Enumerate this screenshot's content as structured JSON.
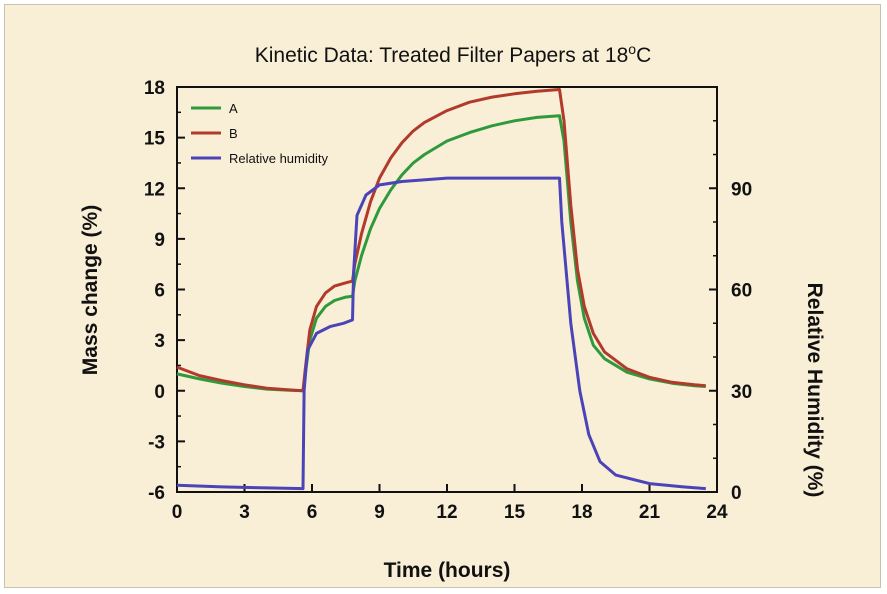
{
  "chart_data": {
    "type": "line",
    "title": "Kinetic Data: Treated Filter Papers at 18",
    "title_suffix": "°C",
    "xlabel": "Time (hours)",
    "ylabel": "Mass change (%)",
    "y2label": "Relative Humidity (%)",
    "xlim": [
      0,
      24
    ],
    "ylim": [
      -6,
      18
    ],
    "y2lim": [
      0,
      120
    ],
    "xticks": [
      0,
      3,
      6,
      9,
      12,
      15,
      18,
      21,
      24
    ],
    "yticks": [
      -6,
      -3,
      0,
      3,
      6,
      9,
      12,
      15,
      18
    ],
    "y2ticks": [
      0,
      30,
      60,
      90
    ],
    "grid": false,
    "legend_position": "top-left",
    "series": [
      {
        "name": "A",
        "axis": "left",
        "color": "#2e9a3c",
        "points": [
          [
            0,
            1.0
          ],
          [
            1,
            0.7
          ],
          [
            2,
            0.45
          ],
          [
            3,
            0.25
          ],
          [
            4,
            0.1
          ],
          [
            5,
            0.03
          ],
          [
            5.6,
            0.0
          ],
          [
            5.7,
            1.0
          ],
          [
            5.9,
            3.0
          ],
          [
            6.2,
            4.3
          ],
          [
            6.6,
            5.0
          ],
          [
            7.0,
            5.35
          ],
          [
            7.5,
            5.55
          ],
          [
            7.8,
            5.6
          ],
          [
            7.9,
            6.5
          ],
          [
            8.2,
            8.0
          ],
          [
            8.6,
            9.6
          ],
          [
            9,
            10.8
          ],
          [
            9.5,
            11.9
          ],
          [
            10,
            12.8
          ],
          [
            10.5,
            13.5
          ],
          [
            11,
            14.0
          ],
          [
            12,
            14.8
          ],
          [
            13,
            15.3
          ],
          [
            14,
            15.7
          ],
          [
            15,
            16.0
          ],
          [
            16,
            16.2
          ],
          [
            17,
            16.3
          ],
          [
            17.2,
            14.8
          ],
          [
            17.5,
            10.0
          ],
          [
            17.8,
            6.5
          ],
          [
            18.1,
            4.3
          ],
          [
            18.5,
            2.7
          ],
          [
            19,
            1.9
          ],
          [
            20,
            1.1
          ],
          [
            21,
            0.7
          ],
          [
            22,
            0.45
          ],
          [
            23,
            0.3
          ],
          [
            23.5,
            0.25
          ]
        ]
      },
      {
        "name": "B",
        "axis": "left",
        "color": "#b23a2c",
        "points": [
          [
            0,
            1.4
          ],
          [
            1,
            0.9
          ],
          [
            2,
            0.6
          ],
          [
            3,
            0.35
          ],
          [
            4,
            0.15
          ],
          [
            5,
            0.05
          ],
          [
            5.6,
            0.0
          ],
          [
            5.7,
            1.3
          ],
          [
            5.9,
            3.6
          ],
          [
            6.2,
            5.0
          ],
          [
            6.6,
            5.8
          ],
          [
            7.0,
            6.2
          ],
          [
            7.5,
            6.4
          ],
          [
            7.8,
            6.5
          ],
          [
            7.9,
            7.5
          ],
          [
            8.2,
            9.3
          ],
          [
            8.6,
            11.2
          ],
          [
            9,
            12.6
          ],
          [
            9.5,
            13.8
          ],
          [
            10,
            14.7
          ],
          [
            10.5,
            15.4
          ],
          [
            11,
            15.9
          ],
          [
            12,
            16.6
          ],
          [
            13,
            17.1
          ],
          [
            14,
            17.4
          ],
          [
            15,
            17.6
          ],
          [
            16,
            17.75
          ],
          [
            17,
            17.85
          ],
          [
            17.2,
            16.0
          ],
          [
            17.5,
            11.0
          ],
          [
            17.8,
            7.2
          ],
          [
            18.1,
            5.0
          ],
          [
            18.5,
            3.4
          ],
          [
            19,
            2.3
          ],
          [
            20,
            1.3
          ],
          [
            21,
            0.8
          ],
          [
            22,
            0.5
          ],
          [
            23,
            0.35
          ],
          [
            23.5,
            0.3
          ]
        ]
      },
      {
        "name": "Relative humidity",
        "axis": "right",
        "color": "#4b44b8",
        "points": [
          [
            0,
            2
          ],
          [
            2,
            1.5
          ],
          [
            4,
            1.2
          ],
          [
            5.6,
            1
          ],
          [
            5.65,
            30
          ],
          [
            5.8,
            42
          ],
          [
            6.2,
            47
          ],
          [
            6.8,
            49
          ],
          [
            7.4,
            50
          ],
          [
            7.8,
            51
          ],
          [
            7.85,
            65
          ],
          [
            8.0,
            82
          ],
          [
            8.4,
            88
          ],
          [
            9,
            91
          ],
          [
            10,
            92
          ],
          [
            12,
            93
          ],
          [
            14,
            93
          ],
          [
            16,
            93
          ],
          [
            17,
            93
          ],
          [
            17.1,
            80
          ],
          [
            17.5,
            50
          ],
          [
            17.9,
            30
          ],
          [
            18.3,
            17
          ],
          [
            18.8,
            9
          ],
          [
            19.5,
            5
          ],
          [
            21,
            2.5
          ],
          [
            22.5,
            1.5
          ],
          [
            23.5,
            1
          ]
        ]
      }
    ]
  }
}
